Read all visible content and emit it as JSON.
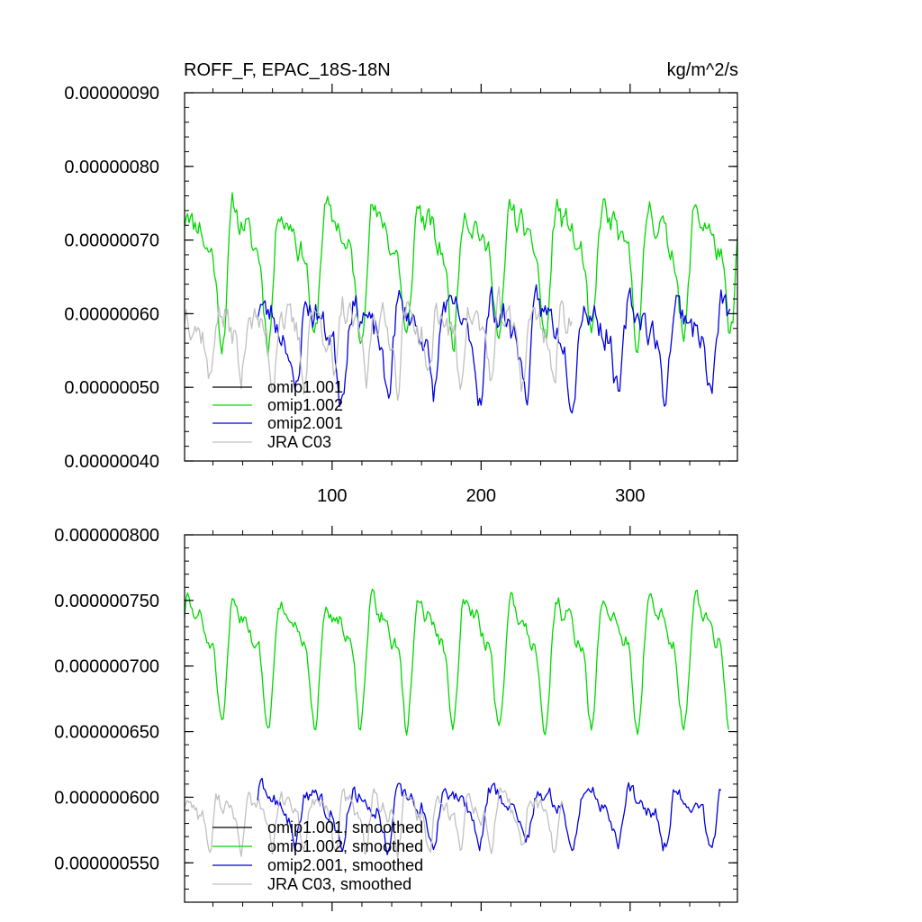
{
  "chart_data": [
    {
      "type": "line",
      "title": "ROFF_F, EPAC_18S-18N",
      "units": "kg/m^2/s",
      "xlim": [
        1,
        372
      ],
      "ylim": [
        4e-07,
        9e-07
      ],
      "xticks": [
        100,
        200,
        300
      ],
      "xtick_labels": [
        "100",
        "200",
        "300"
      ],
      "yticks": [
        4e-07,
        5e-07,
        6e-07,
        7e-07,
        8e-07,
        9e-07
      ],
      "ytick_labels": [
        "0.00000040",
        "0.00000050",
        "0.00000060",
        "0.00000070",
        "0.00000080",
        "0.00000090"
      ],
      "legend": [
        "omip1.001",
        "omip1.002",
        "omip2.001",
        "JRA C03"
      ],
      "series": [
        {
          "name": "omip1.001",
          "color": "#000000",
          "n": 0
        },
        {
          "name": "omip1.002",
          "color": "#00d800",
          "x_start": 1,
          "n": 372,
          "period": 31,
          "base": 6.8e-07,
          "amp": 1.1e-07,
          "noise": 3.5e-08,
          "seed": 11
        },
        {
          "name": "omip2.001",
          "color": "#0000e0",
          "x_start": 50,
          "n": 318,
          "period": 31,
          "base": 5.7e-07,
          "amp": 7.5e-08,
          "noise": 4e-08,
          "seed": 23
        },
        {
          "name": "JRA C03",
          "color": "#c0c0c0",
          "x_start": 1,
          "n": 261,
          "period": 21,
          "base": 5.7e-07,
          "amp": 6e-08,
          "noise": 4e-08,
          "seed": 37
        }
      ]
    },
    {
      "type": "line",
      "title": "",
      "xlim": [
        1,
        372
      ],
      "ylim": [
        5.2e-07,
        8e-07
      ],
      "xticks": [
        100,
        200,
        300
      ],
      "xtick_labels": [],
      "yticks": [
        5.5e-07,
        6e-07,
        6.5e-07,
        7e-07,
        7.5e-07,
        8e-07
      ],
      "ytick_labels": [
        "0.000000550",
        "0.000000600",
        "0.000000650",
        "0.000000700",
        "0.000000750",
        "0.000000800"
      ],
      "legend": [
        "omip1.001, smoothed",
        "omip1.002, smoothed",
        "omip2.001, smoothed",
        "JRA C03, smoothed"
      ],
      "series": [
        {
          "name": "omip1.001, smoothed",
          "color": "#000000",
          "n": 0
        },
        {
          "name": "omip1.002, smoothed",
          "color": "#00d800",
          "x_start": 1,
          "n": 366,
          "period": 31,
          "base": 7.15e-07,
          "amp": 6e-08,
          "noise": 1.2e-08,
          "seed": 51
        },
        {
          "name": "omip2.001, smoothed",
          "color": "#0000e0",
          "x_start": 50,
          "n": 312,
          "period": 31,
          "base": 5.9e-07,
          "amp": 2.5e-08,
          "noise": 1.3e-08,
          "seed": 63
        },
        {
          "name": "JRA C03, smoothed",
          "color": "#c0c0c0",
          "x_start": 1,
          "n": 255,
          "period": 21,
          "base": 5.85e-07,
          "amp": 2.5e-08,
          "noise": 1.3e-08,
          "seed": 77
        }
      ]
    }
  ]
}
